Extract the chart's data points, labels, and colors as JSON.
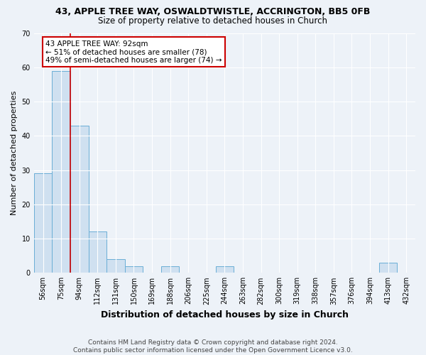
{
  "title1": "43, APPLE TREE WAY, OSWALDTWISTLE, ACCRINGTON, BB5 0FB",
  "title2": "Size of property relative to detached houses in Church",
  "xlabel": "Distribution of detached houses by size in Church",
  "ylabel": "Number of detached properties",
  "categories": [
    "56sqm",
    "75sqm",
    "94sqm",
    "112sqm",
    "131sqm",
    "150sqm",
    "169sqm",
    "188sqm",
    "206sqm",
    "225sqm",
    "244sqm",
    "263sqm",
    "282sqm",
    "300sqm",
    "319sqm",
    "338sqm",
    "357sqm",
    "376sqm",
    "394sqm",
    "413sqm",
    "432sqm"
  ],
  "values": [
    29,
    59,
    43,
    12,
    4,
    2,
    0,
    2,
    0,
    0,
    2,
    0,
    0,
    0,
    0,
    0,
    0,
    0,
    0,
    3,
    0
  ],
  "bar_color": "#cfe0f0",
  "bar_edge_color": "#6aaed6",
  "vline_x": 1.5,
  "vline_color": "#cc0000",
  "annotation_text": "43 APPLE TREE WAY: 92sqm\n← 51% of detached houses are smaller (78)\n49% of semi-detached houses are larger (74) →",
  "annotation_box_color": "#ffffff",
  "annotation_box_edge": "#cc0000",
  "ylim": [
    0,
    70
  ],
  "yticks": [
    0,
    10,
    20,
    30,
    40,
    50,
    60,
    70
  ],
  "footer": "Contains HM Land Registry data © Crown copyright and database right 2024.\nContains public sector information licensed under the Open Government Licence v3.0.",
  "bg_color": "#edf2f8",
  "plot_bg_color": "#edf2f8",
  "grid_color": "#ffffff",
  "title1_fontsize": 9,
  "title2_fontsize": 8.5,
  "label_fontsize": 8,
  "tick_fontsize": 7,
  "footer_fontsize": 6.5,
  "ann_fontsize": 7.5
}
